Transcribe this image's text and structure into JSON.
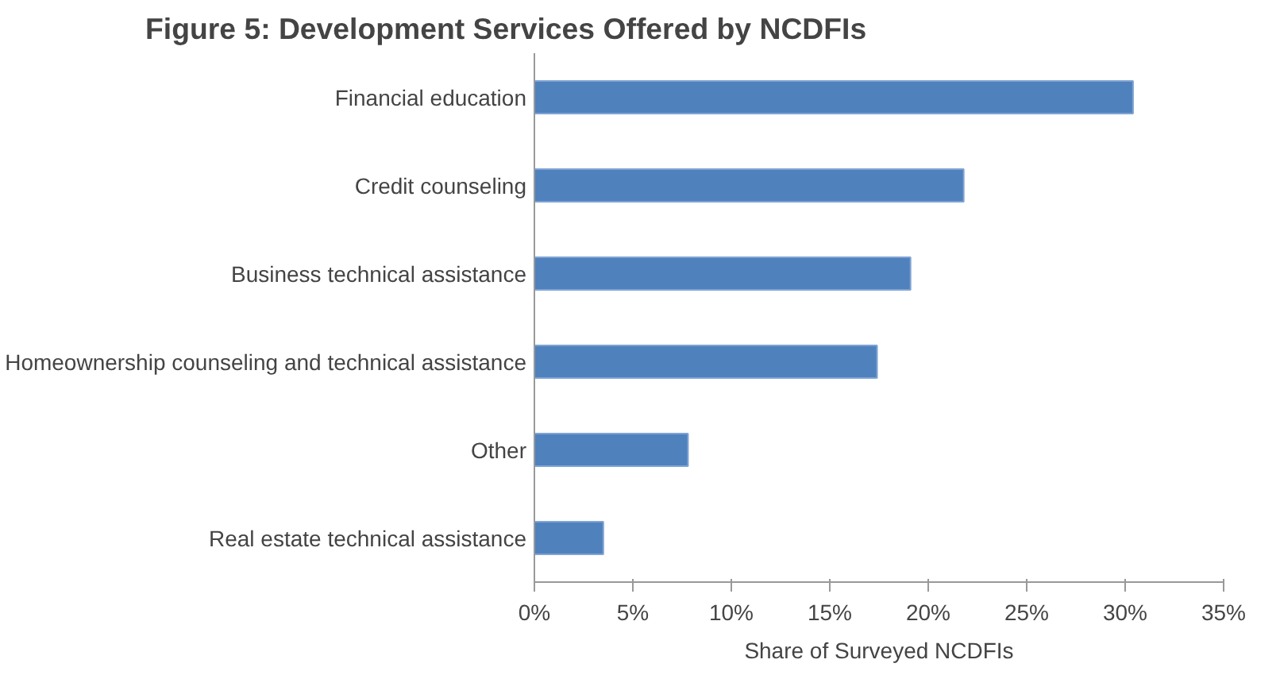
{
  "chart_data": {
    "type": "bar",
    "orientation": "horizontal",
    "title": "Figure 5: Development Services Offered by NCDFIs",
    "categories": [
      "Financial education",
      "Credit counseling",
      "Business technical assistance",
      "Homeownership counseling and technical assistance",
      "Other",
      "Real estate technical assistance"
    ],
    "values": [
      0.304,
      0.218,
      0.191,
      0.174,
      0.078,
      0.035
    ],
    "color": "#4f81bd",
    "xlabel": "Share of Surveyed NCDFIs",
    "xlim": [
      0,
      0.35
    ],
    "xticks": [
      {
        "value": 0,
        "label": "0%"
      },
      {
        "value": 0.05,
        "label": "5%"
      },
      {
        "value": 0.1,
        "label": "10%"
      },
      {
        "value": 0.15,
        "label": "15%"
      },
      {
        "value": 0.2,
        "label": "20%"
      },
      {
        "value": 0.25,
        "label": "25%"
      },
      {
        "value": 0.3,
        "label": "30%"
      },
      {
        "value": 0.35,
        "label": "35%"
      }
    ],
    "grid": false
  }
}
